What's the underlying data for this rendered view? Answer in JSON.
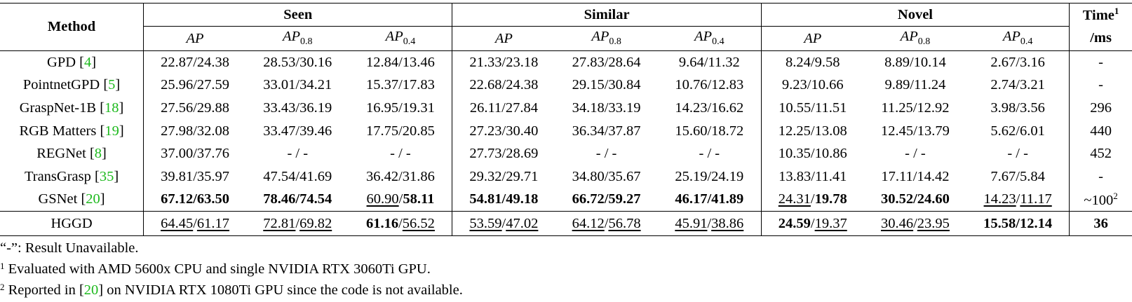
{
  "header": {
    "method": "Method",
    "groups": [
      "Seen",
      "Similar",
      "Novel"
    ],
    "time_top": "Time",
    "time_sup": "1",
    "time_unit": "/ms",
    "ap": "AP",
    "ap08_sub": "0.8",
    "ap04_sub": "0.4"
  },
  "rows": [
    {
      "name": "GPD ",
      "ref": "4",
      "cells": [
        "22.87/24.38",
        "28.53/30.16",
        "12.84/13.46",
        "21.33/23.18",
        "27.83/28.64",
        "9.64/11.32",
        "8.24/9.58",
        "8.89/10.14",
        "2.67/3.16"
      ],
      "time": "-"
    },
    {
      "name": "PointnetGPD ",
      "ref": "5",
      "cells": [
        "25.96/27.59",
        "33.01/34.21",
        "15.37/17.83",
        "22.68/24.38",
        "29.15/30.84",
        "10.76/12.83",
        "9.23/10.66",
        "9.89/11.24",
        "2.74/3.21"
      ],
      "time": "-"
    },
    {
      "name": "GraspNet-1B ",
      "ref": "18",
      "cells": [
        "27.56/29.88",
        "33.43/36.19",
        "16.95/19.31",
        "26.11/27.84",
        "34.18/33.19",
        "14.23/16.62",
        "10.55/11.51",
        "11.25/12.92",
        "3.98/3.56"
      ],
      "time": "296"
    },
    {
      "name": "RGB Matters ",
      "ref": "19",
      "cells": [
        "27.98/32.08",
        "33.47/39.46",
        "17.75/20.85",
        "27.23/30.40",
        "36.34/37.87",
        "15.60/18.72",
        "12.25/13.08",
        "12.45/13.79",
        "5.62/6.01"
      ],
      "time": "440"
    },
    {
      "name": "REGNet ",
      "ref": "8",
      "cells": [
        "37.00/37.76",
        "-  /  -",
        "-  /  -",
        "27.73/28.69",
        "-  /  -",
        "-  /  -",
        "10.35/10.86",
        "-  /  -",
        "-  /  -"
      ],
      "time": "452"
    },
    {
      "name": "TransGrasp ",
      "ref": "35",
      "cells": [
        "39.81/35.97",
        "47.54/41.69",
        "36.42/31.86",
        "29.32/29.71",
        "34.80/35.67",
        "25.19/24.19",
        "13.83/11.41",
        "17.11/14.42",
        "7.67/5.84"
      ],
      "time": "-"
    }
  ],
  "gsnet": {
    "name": "GSNet ",
    "ref": "20",
    "c": [
      "67.12/63.50",
      "78.46/74.54",
      "60.90",
      "/",
      "58.11",
      "54.81/49.18",
      "66.72/59.27",
      "46.17/41.89",
      "24.31",
      "/",
      "19.78",
      "30.52/24.60",
      "14.23",
      "/",
      "11.17"
    ],
    "time": "~100",
    "time_sup": "2"
  },
  "hggd": {
    "name": "HGGD",
    "c": [
      "64.45",
      "/",
      "61.17",
      "72.81",
      "/",
      "69.82",
      "61.16",
      "/",
      "56.52",
      "53.59",
      "/",
      "47.02",
      "64.12",
      "/",
      "56.78",
      "45.91",
      "/",
      "38.86",
      "24.59",
      "/",
      "19.37",
      "30.46",
      "/",
      "23.95",
      "15.58/12.14"
    ],
    "time": "36"
  },
  "notes": {
    "n0": "“-”: Result Unavailable.",
    "n1_sup": "1",
    "n1": " Evaluated with AMD 5600x CPU and single NVIDIA RTX 3060Ti GPU.",
    "n2_sup": "2",
    "n2_a": " Reported in [",
    "n2_ref": "20",
    "n2_b": "] on NVIDIA RTX 1080Ti GPU since the code is not available."
  }
}
